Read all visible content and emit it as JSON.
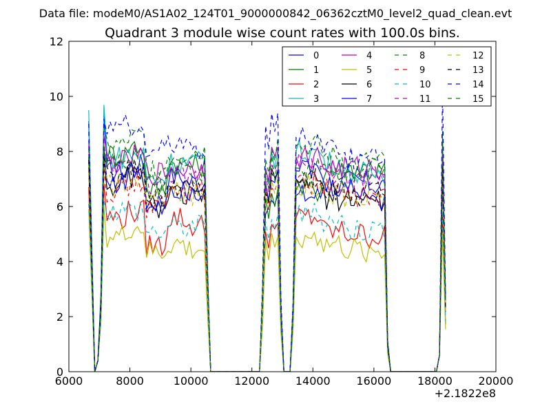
{
  "suptitle": "Data file: modeM0/AS1A02_124T01_9000000842_06362cztM0_level2_quad_clean.evt",
  "chart_data": {
    "type": "line",
    "title": "Quadrant 3 module wise count rates with 100.0s bins.",
    "xlabel": "",
    "ylabel": "",
    "x_offset_label": "+2.1822e8",
    "xlim": [
      6000,
      20000
    ],
    "ylim": [
      0,
      12
    ],
    "x_ticks": [
      6000,
      8000,
      10000,
      12000,
      14000,
      16000,
      18000,
      20000
    ],
    "y_ticks": [
      0,
      2,
      4,
      6,
      8,
      10,
      12
    ],
    "grid": false,
    "legend_position": "top-right",
    "legend_columns": 4,
    "series": [
      {
        "name": "0",
        "color": "#0000ff",
        "style": "solid",
        "levels": [
          9.1,
          7.3,
          7.5,
          6.2,
          7.1,
          6.9,
          6.6,
          6.3,
          6.4,
          6.8,
          6.9,
          6.8
        ]
      },
      {
        "name": "1",
        "color": "#008000",
        "style": "solid",
        "levels": [
          7.9,
          7.9,
          8.2,
          6.6,
          7.6,
          7.5,
          7.3,
          6.5,
          6.6,
          7.3,
          7.4,
          7.3
        ]
      },
      {
        "name": "2",
        "color": "#ff0000",
        "style": "solid",
        "levels": [
          6.7,
          5.6,
          5.8,
          4.6,
          5.6,
          5.3,
          5.3,
          5.3,
          5.6,
          5.1,
          5.0,
          4.9
        ]
      },
      {
        "name": "3",
        "color": "#00bfbf",
        "style": "solid",
        "levels": [
          9.5,
          7.8,
          7.9,
          7.0,
          7.6,
          7.6,
          7.5,
          7.9,
          8.0,
          7.6,
          7.2,
          7.2
        ]
      },
      {
        "name": "4",
        "color": "#bf00bf",
        "style": "solid",
        "levels": [
          8.4,
          7.6,
          7.8,
          7.2,
          7.4,
          7.4,
          7.4,
          8.0,
          7.8,
          7.4,
          7.4,
          7.4
        ]
      },
      {
        "name": "5",
        "color": "#bfbf00",
        "style": "solid",
        "levels": [
          5.9,
          4.9,
          5.2,
          4.3,
          4.6,
          4.4,
          4.6,
          4.8,
          4.9,
          4.6,
          4.4,
          4.4
        ]
      },
      {
        "name": "6",
        "color": "#000000",
        "style": "solid",
        "levels": [
          7.6,
          6.8,
          7.1,
          6.0,
          6.4,
          6.3,
          6.2,
          7.1,
          7.0,
          6.3,
          6.3,
          6.2
        ]
      },
      {
        "name": "7",
        "color": "#0000ff",
        "style": "solid",
        "levels": [
          7.8,
          6.9,
          7.2,
          6.1,
          6.7,
          6.6,
          6.4,
          7.2,
          7.3,
          6.7,
          6.6,
          6.3
        ]
      },
      {
        "name": "8",
        "color": "#008000",
        "style": "dashed",
        "levels": [
          8.7,
          8.2,
          8.5,
          7.4,
          7.9,
          8.0,
          7.8,
          8.3,
          8.2,
          7.8,
          7.6,
          7.6
        ]
      },
      {
        "name": "9",
        "color": "#ff0000",
        "style": "dashed",
        "levels": [
          7.3,
          6.6,
          6.8,
          6.0,
          6.5,
          6.5,
          6.3,
          6.8,
          6.9,
          6.6,
          6.4,
          6.3
        ]
      },
      {
        "name": "10",
        "color": "#00bfbf",
        "style": "dashed",
        "levels": [
          6.1,
          5.9,
          5.9,
          5.1,
          5.3,
          5.3,
          5.2,
          5.6,
          5.7,
          5.5,
          5.2,
          5.2
        ]
      },
      {
        "name": "11",
        "color": "#bf00bf",
        "style": "dashed",
        "levels": [
          8.2,
          7.4,
          7.6,
          6.8,
          7.2,
          7.2,
          7.0,
          7.5,
          7.5,
          7.2,
          7.0,
          7.2
        ]
      },
      {
        "name": "12",
        "color": "#bfbf00",
        "style": "dashed",
        "levels": [
          7.5,
          6.8,
          7.0,
          6.2,
          6.5,
          6.4,
          6.3,
          6.9,
          6.8,
          6.5,
          6.2,
          6.3
        ]
      },
      {
        "name": "13",
        "color": "#000000",
        "style": "dashed",
        "levels": [
          7.7,
          7.0,
          7.3,
          6.3,
          6.7,
          6.6,
          6.5,
          7.1,
          7.0,
          6.6,
          6.4,
          6.5
        ]
      },
      {
        "name": "14",
        "color": "#0000ff",
        "style": "dashed",
        "levels": [
          9.0,
          8.9,
          8.8,
          8.1,
          8.4,
          8.1,
          7.6,
          9.2,
          8.5,
          8.3,
          7.7,
          7.7
        ]
      },
      {
        "name": "15",
        "color": "#008000",
        "style": "dashed",
        "levels": [
          8.1,
          7.5,
          7.8,
          6.8,
          7.3,
          7.2,
          7.0,
          7.6,
          7.4,
          7.2,
          7.1,
          7.3
        ]
      }
    ]
  }
}
